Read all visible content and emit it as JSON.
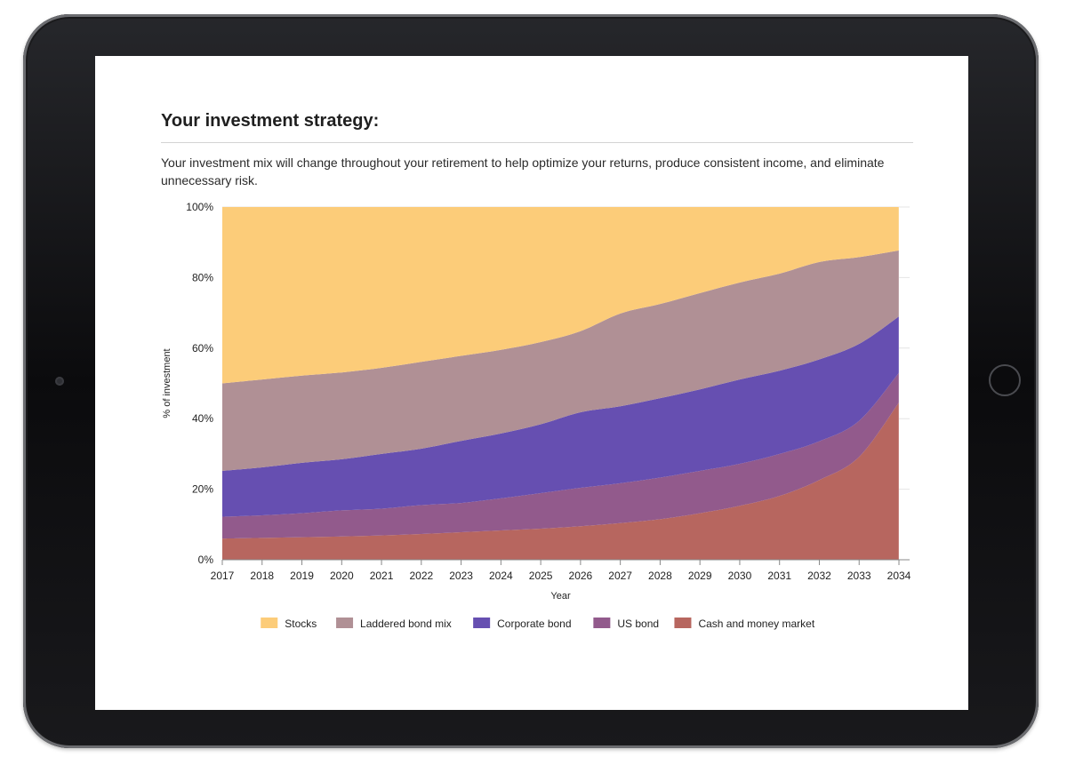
{
  "heading": "Your investment strategy:",
  "description": "Your investment mix will change throughout your retirement to help optimize your returns, produce consistent income, and eliminate unnecessary risk.",
  "chart_data": {
    "type": "area",
    "stacked": true,
    "title": "",
    "xlabel": "Year",
    "ylabel": "% of investment",
    "ylim": [
      0,
      100
    ],
    "x": [
      2017,
      2018,
      2019,
      2020,
      2021,
      2022,
      2023,
      2024,
      2025,
      2026,
      2027,
      2028,
      2029,
      2030,
      2031,
      2032,
      2033,
      2034
    ],
    "x_tick_labels": [
      "2017",
      "2018",
      "2019",
      "2020",
      "2021",
      "2022",
      "2023",
      "2024",
      "2025",
      "2026",
      "2027",
      "2028",
      "2029",
      "2030",
      "2031",
      "2032",
      "2033",
      "2034"
    ],
    "y_ticks": [
      0,
      20,
      40,
      60,
      80,
      100
    ],
    "y_tick_labels": [
      "0%",
      "20%",
      "40%",
      "60%",
      "80%",
      "100%"
    ],
    "legend_position": "bottom",
    "series": [
      {
        "name": "Cash and money market",
        "color": "#b7665f",
        "values": [
          6,
          6.2,
          6.4,
          6.6,
          6.9,
          7.3,
          7.8,
          8.3,
          8.8,
          9.5,
          10.4,
          11.5,
          13.2,
          15.3,
          18.1,
          22.6,
          29.2,
          44.6
        ]
      },
      {
        "name": "US bond",
        "color": "#925a8c",
        "values": [
          6.2,
          6.4,
          6.8,
          7.4,
          7.6,
          8.2,
          8.3,
          9.1,
          10.1,
          10.9,
          11.3,
          11.8,
          12.0,
          11.9,
          11.9,
          11.0,
          10.2,
          8.4
        ]
      },
      {
        "name": "Corporate bond",
        "color": "#664fb1",
        "values": [
          13,
          13.6,
          14.3,
          14.5,
          15.5,
          16.0,
          17.6,
          18.4,
          19.5,
          21.4,
          21.8,
          22.5,
          23.1,
          23.9,
          23.6,
          23.2,
          21.8,
          16.0
        ]
      },
      {
        "name": "Laddered bond mix",
        "color": "#b09095",
        "values": [
          24.8,
          24.9,
          24.7,
          24.6,
          24.4,
          24.6,
          24.1,
          23.7,
          23.3,
          23.0,
          26.3,
          26.7,
          27.3,
          27.5,
          27.5,
          27.6,
          24.6,
          18.7
        ]
      },
      {
        "name": "Stocks",
        "color": "#fccc79",
        "values": [
          50,
          48.9,
          47.8,
          46.9,
          45.6,
          43.9,
          42.2,
          40.5,
          38.3,
          35.2,
          30.2,
          27.5,
          24.4,
          21.4,
          18.9,
          15.6,
          14.2,
          12.3
        ]
      }
    ]
  }
}
